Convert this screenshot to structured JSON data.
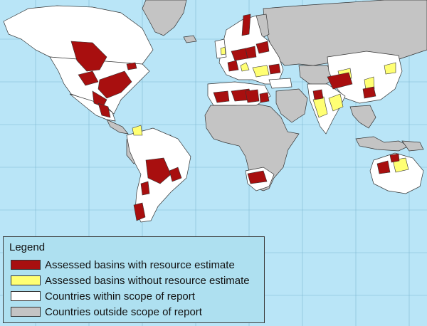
{
  "colors": {
    "ocean": "#b9e5f7",
    "graticule": "#7fb9d3",
    "land_outside_scope": "#c4c4c4",
    "land_within_scope": "#ffffff",
    "basin_with_estimate": "#a80f0f",
    "basin_without_estimate": "#ffff73",
    "border": "#333333",
    "legend_bg": "#aee0f0"
  },
  "legend": {
    "title": "Legend",
    "items": [
      {
        "label": "Assessed basins with resource estimate",
        "color": "#a80f0f"
      },
      {
        "label": "Assessed basins without resource estimate",
        "color": "#ffff73"
      },
      {
        "label": "Countries within scope of report",
        "color": "#ffffff"
      },
      {
        "label": "Countries outside scope of report",
        "color": "#c4c4c4"
      }
    ]
  }
}
